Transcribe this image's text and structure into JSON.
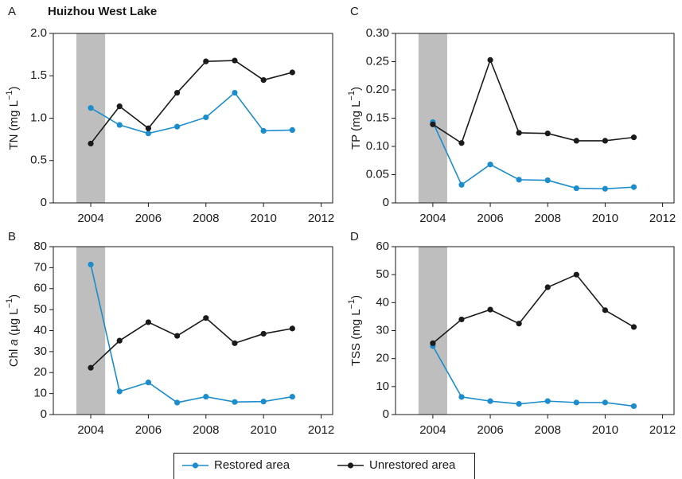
{
  "chart_data": [
    {
      "type": "line",
      "panel_label": "A",
      "title": "Huizhou West Lake",
      "ylabel": [
        {
          "text": "TN (mg L"
        },
        {
          "text": "−1",
          "style": "sup"
        },
        {
          "text": ")"
        }
      ],
      "x": [
        2004,
        2005,
        2006,
        2007,
        2008,
        2009,
        2010,
        2011
      ],
      "series": [
        {
          "name": "Restored area",
          "color": "#1b8ccc",
          "values": [
            1.12,
            0.92,
            0.82,
            0.9,
            1.01,
            1.3,
            0.85,
            0.86
          ]
        },
        {
          "name": "Unrestored area",
          "color": "#1a1a1a",
          "values": [
            0.7,
            1.14,
            0.88,
            1.3,
            1.67,
            1.68,
            1.45,
            1.54
          ]
        }
      ],
      "xlim": [
        2002.7,
        2012.4
      ],
      "xticks": [
        2004,
        2006,
        2008,
        2010,
        2012
      ],
      "ylim": [
        0,
        2.0
      ],
      "yticks": [
        0,
        0.5,
        {
          "value": 1,
          "label": "1.0"
        },
        1.5,
        {
          "value": 2,
          "label": "2.0"
        }
      ],
      "shade": [
        2003.5,
        2004.5
      ],
      "shade_color": "#bebebe"
    },
    {
      "type": "line",
      "panel_label": "B",
      "ylabel": [
        {
          "text": "Chl "
        },
        {
          "text": "a",
          "style": "italic"
        },
        {
          "text": " (µg L"
        },
        {
          "text": "−1",
          "style": "sup"
        },
        {
          "text": ")"
        }
      ],
      "x": [
        2004,
        2005,
        2006,
        2007,
        2008,
        2009,
        2010,
        2011
      ],
      "series": [
        {
          "name": "Restored area",
          "color": "#1b8ccc",
          "values": [
            71.5,
            11,
            15.3,
            5.7,
            8.5,
            6,
            6.2,
            8.5
          ]
        },
        {
          "name": "Unrestored area",
          "color": "#1a1a1a",
          "values": [
            22.3,
            35.2,
            44,
            37.5,
            46,
            34,
            38.5,
            41
          ]
        }
      ],
      "xlim": [
        2002.7,
        2012.4
      ],
      "xticks": [
        2004,
        2006,
        2008,
        2010,
        2012
      ],
      "ylim": [
        0,
        80
      ],
      "yticks": [
        0,
        10,
        20,
        30,
        40,
        50,
        60,
        70,
        80
      ],
      "shade": [
        2003.5,
        2004.5
      ],
      "shade_color": "#bebebe"
    },
    {
      "type": "line",
      "panel_label": "C",
      "ylabel": [
        {
          "text": "TP (mg L"
        },
        {
          "text": "−1",
          "style": "sup"
        },
        {
          "text": ")"
        }
      ],
      "x": [
        2004,
        2005,
        2006,
        2007,
        2008,
        2009,
        2010,
        2011
      ],
      "series": [
        {
          "name": "Restored area",
          "color": "#1b8ccc",
          "values": [
            0.143,
            0.032,
            0.068,
            0.041,
            0.04,
            0.026,
            0.025,
            0.028
          ]
        },
        {
          "name": "Unrestored area",
          "color": "#1a1a1a",
          "values": [
            0.139,
            0.106,
            0.253,
            0.124,
            0.123,
            0.11,
            0.11,
            0.116
          ]
        }
      ],
      "xlim": [
        2002.7,
        2012.4
      ],
      "xticks": [
        2004,
        2006,
        2008,
        2010,
        2012
      ],
      "ylim": [
        0,
        0.3
      ],
      "yticks": [
        0,
        0.05,
        {
          "value": 0.1,
          "label": "0.10"
        },
        0.15,
        {
          "value": 0.2,
          "label": "0.20"
        },
        0.25,
        {
          "value": 0.3,
          "label": "0.30"
        }
      ],
      "shade": [
        2003.5,
        2004.5
      ],
      "shade_color": "#bebebe"
    },
    {
      "type": "line",
      "panel_label": "D",
      "ylabel": [
        {
          "text": "TSS (mg L"
        },
        {
          "text": "−1",
          "style": "sup"
        },
        {
          "text": ")"
        }
      ],
      "x": [
        2004,
        2005,
        2006,
        2007,
        2008,
        2009,
        2010,
        2011
      ],
      "series": [
        {
          "name": "Restored area",
          "color": "#1b8ccc",
          "values": [
            24.5,
            6.3,
            4.8,
            3.8,
            4.8,
            4.3,
            4.3,
            3
          ]
        },
        {
          "name": "Unrestored area",
          "color": "#1a1a1a",
          "values": [
            25.5,
            34,
            37.5,
            32.5,
            45.5,
            50,
            37.3,
            31.3
          ]
        }
      ],
      "xlim": [
        2002.7,
        2012.4
      ],
      "xticks": [
        2004,
        2006,
        2008,
        2010,
        2012
      ],
      "ylim": [
        0,
        60
      ],
      "yticks": [
        0,
        10,
        20,
        30,
        40,
        50,
        60
      ],
      "shade": [
        2003.5,
        2004.5
      ],
      "shade_color": "#bebebe"
    }
  ]
}
